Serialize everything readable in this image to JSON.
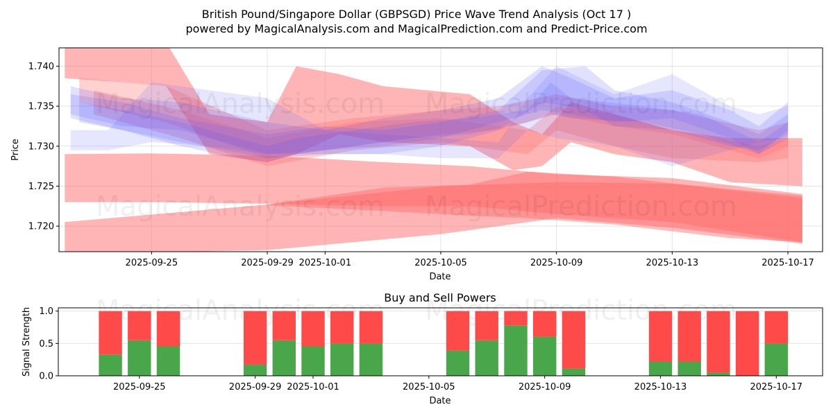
{
  "header": {
    "title": "British Pound/Singapore Dollar (GBPSGD) Price Wave Trend Analysis (Oct 17 )",
    "subtitle": "powered by MagicalAnalysis.com and MagicalPrediction.com and Predict-Price.com"
  },
  "watermarks": [
    "MagicalAnalysis.com",
    "MagicalPrediction.com"
  ],
  "colors": {
    "buy": "#4aa64a",
    "sell": "#ff4a4a",
    "wave_red": "#ff6b6b",
    "wave_blue": "#5a5aff"
  },
  "chart_data": [
    {
      "type": "area",
      "title": "",
      "xlabel": "Date",
      "ylabel": "Price",
      "x_reference_date": "2025-09-25",
      "x_unit": "days from reference",
      "xlim_days": [
        -3.2,
        23.2
      ],
      "ylim": [
        1.7168,
        1.7423
      ],
      "yticks": [
        "1.720",
        "1.725",
        "1.730",
        "1.735",
        "1.740"
      ],
      "ytick_values": [
        1.72,
        1.725,
        1.73,
        1.735,
        1.74
      ],
      "xticks": [
        "2025-09-25",
        "2025-09-29",
        "2025-10-01",
        "2025-10-05",
        "2025-10-09",
        "2025-10-13",
        "2025-10-17"
      ],
      "xtick_days": [
        0,
        4,
        6,
        10,
        14,
        18,
        22
      ],
      "grid": true,
      "series": [
        {
          "name": "red-wave-low",
          "color": "red",
          "opacity": 0.5,
          "days": [
            -3,
            4,
            10,
            14,
            18,
            22.5
          ],
          "upper": [
            1.7205,
            1.7227,
            1.725,
            1.7255,
            1.7253,
            1.7238
          ],
          "lower": [
            1.7165,
            1.717,
            1.719,
            1.721,
            1.7198,
            1.7178
          ]
        },
        {
          "name": "red-wave-mid",
          "color": "red",
          "opacity": 0.5,
          "days": [
            -3,
            0,
            4,
            8,
            11,
            14,
            18,
            22.5
          ],
          "upper": [
            1.729,
            1.7291,
            1.7288,
            1.728,
            1.7275,
            1.7265,
            1.726,
            1.724
          ],
          "lower": [
            1.723,
            1.723,
            1.7228,
            1.7225,
            1.7225,
            1.7215,
            1.7205,
            1.718
          ]
        },
        {
          "name": "red-wave-dark",
          "color": "red",
          "opacity": 0.45,
          "days": [
            4,
            8,
            11,
            13,
            16,
            20,
            22.5
          ],
          "upper": [
            1.7227,
            1.7248,
            1.7252,
            1.7268,
            1.7262,
            1.7245,
            1.7235
          ],
          "lower": [
            1.7226,
            1.7219,
            1.7213,
            1.721,
            1.7202,
            1.7185,
            1.718
          ]
        },
        {
          "name": "red-wave-high",
          "color": "red",
          "opacity": 0.5,
          "days": [
            -3,
            -1,
            0.5,
            2,
            4,
            5,
            6.5,
            8,
            11,
            12.5,
            13.5,
            14.5,
            16,
            18,
            20,
            22.5
          ],
          "upper": [
            1.743,
            1.743,
            1.743,
            1.734,
            1.733,
            1.74,
            1.739,
            1.7375,
            1.7365,
            1.733,
            1.7315,
            1.7355,
            1.734,
            1.732,
            1.731,
            1.731
          ],
          "lower": [
            1.7385,
            1.738,
            1.7375,
            1.729,
            1.728,
            1.729,
            1.7315,
            1.7305,
            1.73,
            1.727,
            1.7275,
            1.7305,
            1.729,
            1.728,
            1.7255,
            1.725
          ]
        },
        {
          "name": "purple-wave-1",
          "color": "red",
          "opacity": 0.3,
          "days": [
            -2.5,
            0.5,
            4,
            7,
            10,
            12,
            14,
            16,
            18,
            21,
            22
          ],
          "upper": [
            1.7385,
            1.7375,
            1.732,
            1.7335,
            1.7345,
            1.735,
            1.7365,
            1.735,
            1.7345,
            1.732,
            1.733
          ],
          "lower": [
            1.7355,
            1.733,
            1.7285,
            1.73,
            1.7315,
            1.732,
            1.734,
            1.7325,
            1.7315,
            1.7285,
            1.73
          ]
        },
        {
          "name": "purple-wave-2",
          "color": "red",
          "opacity": 0.3,
          "days": [
            -2,
            1,
            4,
            7,
            10,
            13,
            14,
            16,
            18,
            21,
            22
          ],
          "upper": [
            1.737,
            1.7345,
            1.731,
            1.733,
            1.7335,
            1.732,
            1.735,
            1.734,
            1.732,
            1.73,
            1.731
          ],
          "lower": [
            1.734,
            1.731,
            1.7275,
            1.7295,
            1.7305,
            1.729,
            1.732,
            1.73,
            1.7285,
            1.728,
            1.7285
          ]
        },
        {
          "name": "blue-wave-1",
          "color": "blue",
          "opacity": 0.18,
          "days": [
            -2.8,
            -1,
            1,
            4,
            6,
            8,
            10,
            12,
            13.5,
            14.5,
            16,
            18,
            20,
            21,
            22
          ],
          "upper": [
            1.7375,
            1.736,
            1.7355,
            1.733,
            1.732,
            1.7335,
            1.7345,
            1.736,
            1.74,
            1.7385,
            1.736,
            1.737,
            1.7345,
            1.7325,
            1.7355
          ],
          "lower": [
            1.734,
            1.7325,
            1.732,
            1.729,
            1.7295,
            1.73,
            1.731,
            1.733,
            1.7345,
            1.734,
            1.733,
            1.7335,
            1.731,
            1.729,
            1.732
          ]
        },
        {
          "name": "blue-wave-2",
          "color": "blue",
          "opacity": 0.18,
          "days": [
            -2.8,
            -1,
            1,
            4,
            6,
            8,
            10,
            12,
            13.5,
            15,
            16,
            18,
            20,
            21,
            22
          ],
          "upper": [
            1.7365,
            1.7355,
            1.7335,
            1.7315,
            1.7325,
            1.732,
            1.733,
            1.7345,
            1.7395,
            1.74,
            1.737,
            1.7355,
            1.733,
            1.7315,
            1.734
          ],
          "lower": [
            1.7335,
            1.732,
            1.7305,
            1.7285,
            1.729,
            1.729,
            1.73,
            1.732,
            1.7355,
            1.7345,
            1.7325,
            1.732,
            1.73,
            1.7295,
            1.7315
          ]
        },
        {
          "name": "blue-wave-3",
          "color": "blue",
          "opacity": 0.15,
          "days": [
            -2.8,
            -1.5,
            0,
            2,
            4,
            6,
            8,
            10,
            12,
            13,
            14,
            16,
            18,
            20,
            21,
            22
          ],
          "upper": [
            1.732,
            1.732,
            1.738,
            1.737,
            1.736,
            1.732,
            1.7315,
            1.731,
            1.7305,
            1.736,
            1.74,
            1.7365,
            1.739,
            1.735,
            1.734,
            1.735
          ],
          "lower": [
            1.7295,
            1.7295,
            1.7305,
            1.73,
            1.729,
            1.729,
            1.729,
            1.7285,
            1.7285,
            1.732,
            1.731,
            1.73,
            1.7275,
            1.7295,
            1.7305,
            1.731
          ]
        },
        {
          "name": "blue-wave-4",
          "color": "blue",
          "opacity": 0.18,
          "days": [
            -2.5,
            -1,
            1,
            3,
            4,
            5,
            7,
            9,
            11,
            13,
            13.8,
            14.5,
            17,
            19,
            21,
            22
          ],
          "upper": [
            1.7355,
            1.7345,
            1.733,
            1.731,
            1.73,
            1.731,
            1.732,
            1.733,
            1.7335,
            1.7345,
            1.738,
            1.736,
            1.735,
            1.734,
            1.7305,
            1.733
          ],
          "lower": [
            1.733,
            1.732,
            1.73,
            1.7285,
            1.728,
            1.729,
            1.73,
            1.731,
            1.7315,
            1.733,
            1.734,
            1.7335,
            1.733,
            1.7315,
            1.729,
            1.731
          ]
        }
      ]
    },
    {
      "type": "bar",
      "title": "Buy and Sell Powers",
      "xlabel": "Date",
      "ylabel": "Signal Strength",
      "ylim": [
        0,
        1.05
      ],
      "yticks": [
        "0.0",
        "0.5",
        "1.0"
      ],
      "ytick_values": [
        0,
        0.5,
        1.0
      ],
      "xticks": [
        "2025-09-25",
        "2025-09-29",
        "2025-10-01",
        "2025-10-05",
        "2025-10-09",
        "2025-10-13",
        "2025-10-17"
      ],
      "xtick_days": [
        0,
        4,
        6,
        10,
        14,
        18,
        22
      ],
      "xlim_days": [
        -2.8,
        23.6
      ],
      "grid": true,
      "categories": [
        "2025-09-24",
        "2025-09-25",
        "2025-09-26",
        "2025-09-29",
        "2025-09-30",
        "2025-10-01",
        "2025-10-02",
        "2025-10-03",
        "2025-10-06",
        "2025-10-07",
        "2025-10-08",
        "2025-10-09",
        "2025-10-10",
        "2025-10-13",
        "2025-10-14",
        "2025-10-15",
        "2025-10-16",
        "2025-10-17"
      ],
      "category_days": [
        -1,
        0,
        1,
        4,
        5,
        6,
        7,
        8,
        11,
        12,
        13,
        14,
        15,
        18,
        19,
        20,
        21,
        22
      ],
      "series": [
        {
          "name": "Buy",
          "color": "green",
          "values": [
            0.33,
            0.55,
            0.45,
            0.17,
            0.55,
            0.45,
            0.5,
            0.5,
            0.39,
            0.55,
            0.78,
            0.61,
            0.11,
            0.22,
            0.22,
            0.05,
            0.0,
            0.5
          ]
        },
        {
          "name": "Sell",
          "color": "red",
          "values": [
            0.67,
            0.45,
            0.55,
            0.83,
            0.45,
            0.55,
            0.5,
            0.5,
            0.61,
            0.45,
            0.22,
            0.39,
            0.89,
            0.78,
            0.78,
            0.95,
            1.0,
            0.5
          ]
        }
      ]
    }
  ]
}
